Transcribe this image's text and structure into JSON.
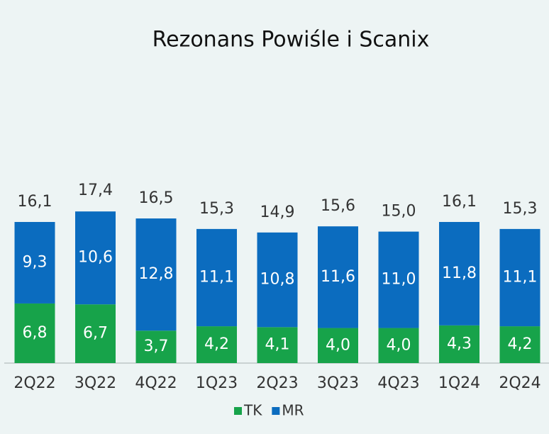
{
  "chart_data": {
    "type": "stacked_bar",
    "title": "Rezonans Powiśle i Scanix",
    "categories": [
      "2Q22",
      "3Q22",
      "4Q22",
      "1Q23",
      "2Q23",
      "3Q23",
      "4Q23",
      "1Q24",
      "2Q24"
    ],
    "series": [
      {
        "name": "TK",
        "color": "#17a34a",
        "values": [
          6.8,
          6.7,
          3.7,
          4.2,
          4.1,
          4.0,
          4.0,
          4.3,
          4.2
        ],
        "value_labels": [
          "6,8",
          "6,7",
          "3,7",
          "4,2",
          "4,1",
          "4,0",
          "4,0",
          "4,3",
          "4,2"
        ]
      },
      {
        "name": "MR",
        "color": "#0b6cbf",
        "values": [
          9.3,
          10.6,
          12.8,
          11.1,
          10.8,
          11.6,
          11.0,
          11.8,
          11.1
        ],
        "value_labels": [
          "9,3",
          "10,6",
          "12,8",
          "11,1",
          "10,8",
          "11,6",
          "11,0",
          "11,8",
          "11,1"
        ]
      }
    ],
    "totals": [
      16.1,
      17.4,
      16.5,
      15.3,
      14.9,
      15.6,
      15.0,
      16.1,
      15.3
    ],
    "total_labels": [
      "16,1",
      "17,4",
      "16,5",
      "15,3",
      "14,9",
      "15,6",
      "15,0",
      "16,1",
      "15,3"
    ],
    "legend": "bottom"
  }
}
